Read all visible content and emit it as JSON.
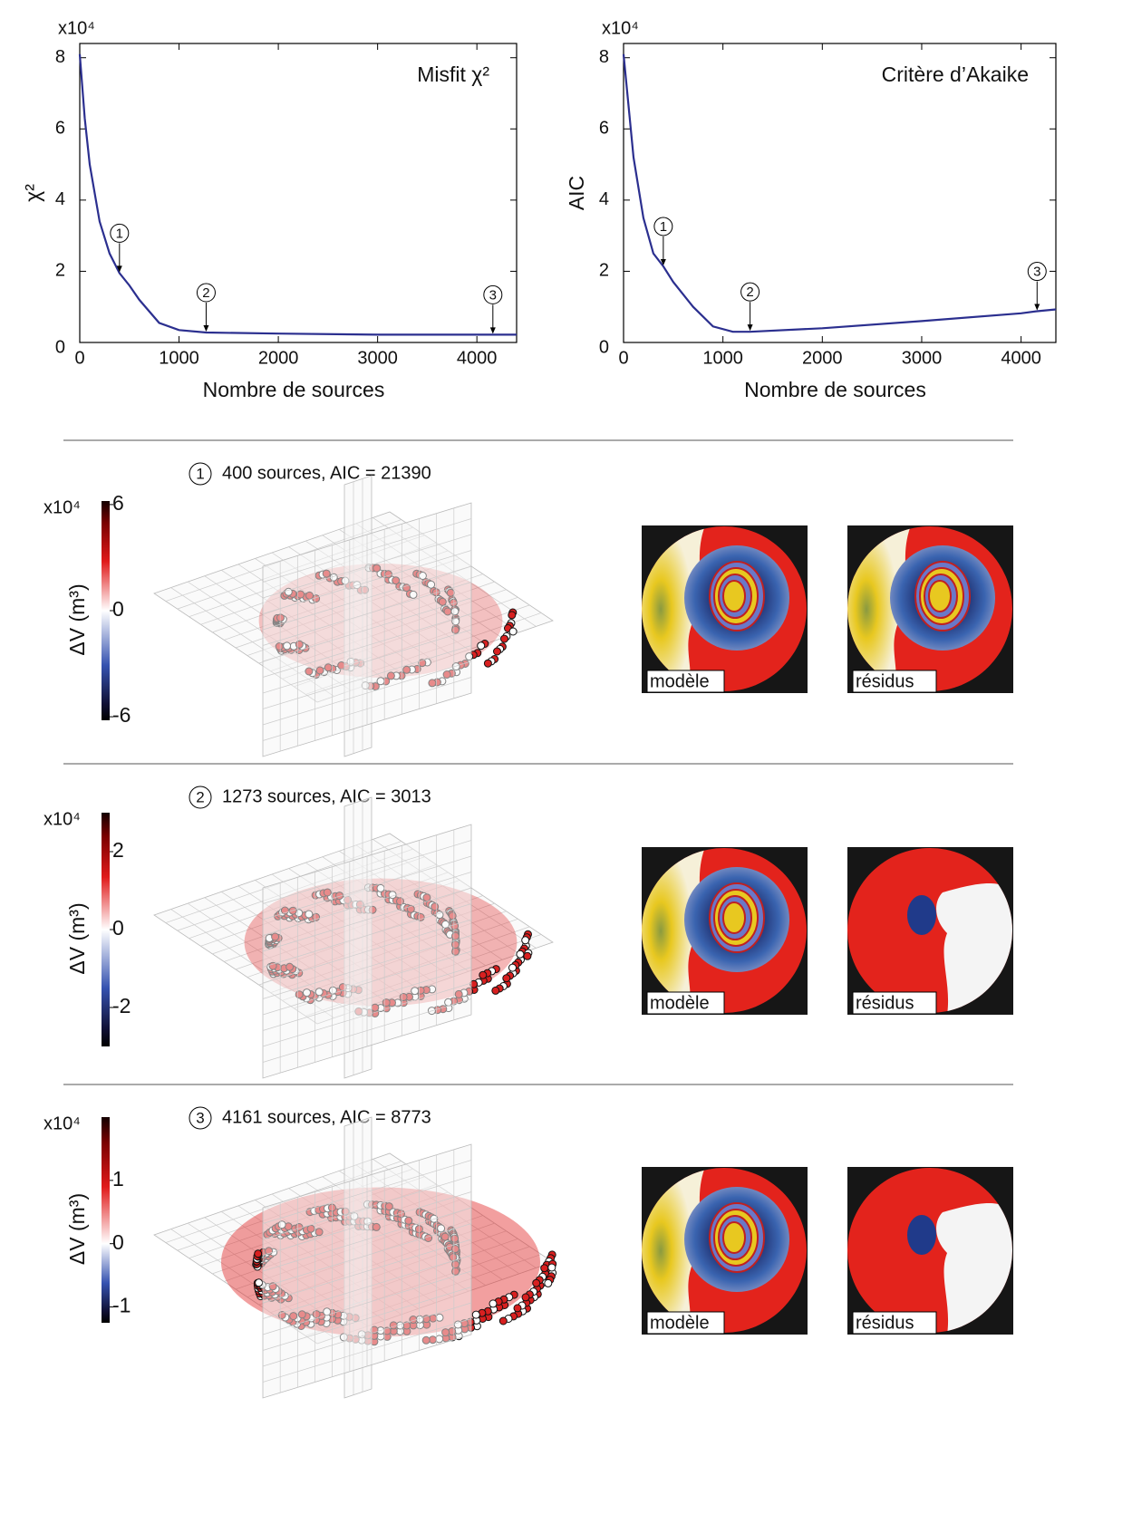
{
  "chart_data": [
    {
      "type": "line",
      "title": "Misfit χ²",
      "xlabel": "Nombre de sources",
      "ylabel": "χ²",
      "y_offset_label": "x10⁴",
      "x": [
        0,
        50,
        100,
        200,
        300,
        400,
        500,
        600,
        800,
        1000,
        1273,
        2000,
        3000,
        4161,
        4400
      ],
      "series": [
        {
          "color": "#2b2f8f",
          "values": [
            8.1,
            6.3,
            5.0,
            3.4,
            2.5,
            1.95,
            1.6,
            1.2,
            0.55,
            0.35,
            0.28,
            0.25,
            0.22,
            0.22,
            0.22
          ]
        }
      ],
      "xlim": [
        0,
        4400
      ],
      "ylim": [
        0,
        8.4
      ],
      "xticks": [
        0,
        1000,
        2000,
        3000,
        4000
      ],
      "yticks": [
        0,
        2,
        4,
        6,
        8
      ],
      "annotations": [
        {
          "label": "1",
          "x": 400,
          "y": 1.95
        },
        {
          "label": "2",
          "x": 1273,
          "y": 0.28
        },
        {
          "label": "3",
          "x": 4161,
          "y": 0.22
        }
      ]
    },
    {
      "type": "line",
      "title": "Critère d’Akaike",
      "xlabel": "Nombre de sources",
      "ylabel": "AIC",
      "y_offset_label": "x10⁴",
      "x": [
        0,
        100,
        200,
        300,
        400,
        500,
        700,
        900,
        1100,
        1273,
        2000,
        3000,
        4000,
        4161,
        4350
      ],
      "series": [
        {
          "color": "#2b2f8f",
          "values": [
            8.1,
            5.2,
            3.5,
            2.5,
            2.139,
            1.7,
            1.0,
            0.45,
            0.3,
            0.3013,
            0.4,
            0.6,
            0.82,
            0.8773,
            0.93
          ]
        }
      ],
      "xlim": [
        0,
        4350
      ],
      "ylim": [
        0,
        8.4
      ],
      "xticks": [
        0,
        1000,
        2000,
        3000,
        4000
      ],
      "yticks": [
        0,
        2,
        4,
        6,
        8
      ],
      "annotations": [
        {
          "label": "1",
          "x": 400,
          "y": 2.139
        },
        {
          "label": "2",
          "x": 1273,
          "y": 0.3013
        },
        {
          "label": "3",
          "x": 4161,
          "y": 0.8773
        }
      ]
    }
  ],
  "rows": [
    {
      "number": "1",
      "caption": "400 sources, AIC = 21390",
      "colorbar": {
        "multiplier": "x10⁴",
        "label": "ΔV (m³)",
        "ticks": [
          6,
          0,
          -6
        ],
        "lim": [
          -6.2,
          6.2
        ]
      },
      "panels": [
        "modèle",
        "résidus"
      ]
    },
    {
      "number": "2",
      "caption": "1273 sources, AIC = 3013",
      "colorbar": {
        "multiplier": "x10⁴",
        "label": "ΔV (m³)",
        "ticks": [
          2,
          0,
          -2
        ],
        "lim": [
          -3,
          3
        ]
      },
      "panels": [
        "modèle",
        "résidus"
      ]
    },
    {
      "number": "3",
      "caption": "4161 sources, AIC = 8773",
      "colorbar": {
        "multiplier": "x10⁴",
        "label": "ΔV (m³)",
        "ticks": [
          1,
          0,
          -1
        ],
        "lim": [
          -1.25,
          2
        ]
      },
      "panels": [
        "modèle",
        "résidus"
      ]
    }
  ]
}
